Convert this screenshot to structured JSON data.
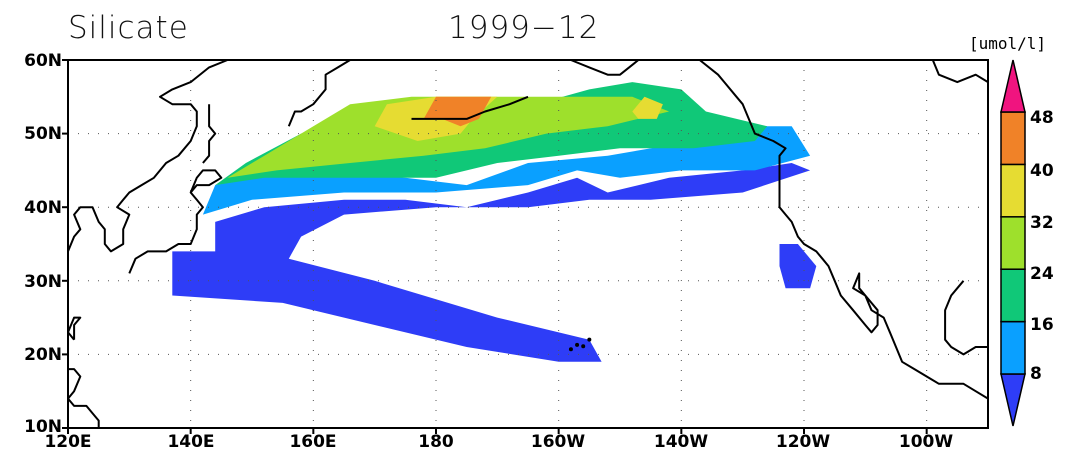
{
  "title": {
    "variable": "Silicate",
    "date": "1999−12"
  },
  "colorbar": {
    "unit": "[umol/l]",
    "levels": [
      "8",
      "16",
      "24",
      "32",
      "40",
      "48"
    ],
    "colors": [
      "#2e3df7",
      "#0aa0ff",
      "#10c878",
      "#9ee02c",
      "#e6dc32",
      "#f08228",
      "#f0147f"
    ]
  },
  "axes": {
    "y_ticks": [
      "60N",
      "50N",
      "40N",
      "30N",
      "20N",
      "10N"
    ],
    "x_ticks": [
      "120E",
      "140E",
      "160E",
      "180",
      "160W",
      "140W",
      "120W",
      "100W"
    ],
    "lon_range": [
      120,
      270
    ],
    "lat_range": [
      10,
      60
    ]
  },
  "chart_data": {
    "type": "heatmap",
    "variable": "Silicate",
    "unit": "umol/l",
    "time": "1999-12",
    "lon_range": [
      120,
      270
    ],
    "lat_range": [
      10,
      60
    ],
    "contour_levels": [
      8,
      16,
      24,
      32,
      40,
      48
    ],
    "regions": [
      {
        "name": "below-8",
        "value_range": [
          0,
          8
        ],
        "color": "#2e3df7",
        "polygon": [
          [
            137,
            34
          ],
          [
            144,
            34
          ],
          [
            144,
            38
          ],
          [
            152,
            40
          ],
          [
            165,
            41
          ],
          [
            175,
            41
          ],
          [
            185,
            40
          ],
          [
            195,
            42
          ],
          [
            203,
            44
          ],
          [
            208,
            42
          ],
          [
            218,
            44
          ],
          [
            230,
            45
          ],
          [
            238,
            46
          ],
          [
            241,
            45
          ],
          [
            230,
            42
          ],
          [
            215,
            41
          ],
          [
            205,
            41
          ],
          [
            195,
            40
          ],
          [
            180,
            40
          ],
          [
            165,
            39
          ],
          [
            158,
            36
          ],
          [
            156,
            33
          ],
          [
            170,
            30
          ],
          [
            190,
            25
          ],
          [
            205,
            22
          ],
          [
            207,
            19
          ],
          [
            200,
            19
          ],
          [
            185,
            21
          ],
          [
            170,
            24
          ],
          [
            155,
            27
          ],
          [
            137,
            28
          ]
        ]
      },
      {
        "name": "below-8-east",
        "value_range": [
          0,
          8
        ],
        "color": "#2e3df7",
        "polygon": [
          [
            236,
            35
          ],
          [
            239,
            35
          ],
          [
            242,
            32
          ],
          [
            241,
            29
          ],
          [
            237,
            29
          ],
          [
            236,
            32
          ]
        ]
      },
      {
        "name": "8-16",
        "value_range": [
          8,
          16
        ],
        "color": "#0aa0ff",
        "polygon": [
          [
            142,
            39
          ],
          [
            144,
            43
          ],
          [
            150,
            44
          ],
          [
            160,
            45
          ],
          [
            175,
            44
          ],
          [
            185,
            43
          ],
          [
            195,
            46
          ],
          [
            208,
            47
          ],
          [
            222,
            49
          ],
          [
            232,
            51
          ],
          [
            238,
            51
          ],
          [
            241,
            47
          ],
          [
            232,
            45
          ],
          [
            220,
            45
          ],
          [
            210,
            44
          ],
          [
            203,
            45
          ],
          [
            195,
            43
          ],
          [
            180,
            42
          ],
          [
            165,
            42
          ],
          [
            150,
            41
          ]
        ]
      },
      {
        "name": "16-24",
        "value_range": [
          16,
          24
        ],
        "color": "#10c878",
        "polygon": [
          [
            144,
            43
          ],
          [
            149,
            46
          ],
          [
            158,
            50
          ],
          [
            168,
            53
          ],
          [
            180,
            52
          ],
          [
            192,
            53
          ],
          [
            205,
            56
          ],
          [
            212,
            57
          ],
          [
            220,
            56
          ],
          [
            224,
            53
          ],
          [
            234,
            51
          ],
          [
            232,
            49
          ],
          [
            222,
            48
          ],
          [
            210,
            48
          ],
          [
            200,
            47
          ],
          [
            190,
            46
          ],
          [
            180,
            44
          ],
          [
            165,
            44
          ],
          [
            152,
            44
          ]
        ]
      },
      {
        "name": "24-32",
        "value_range": [
          24,
          32
        ],
        "color": "#9ee02c",
        "polygon": [
          [
            146,
            44
          ],
          [
            152,
            47
          ],
          [
            158,
            50
          ],
          [
            166,
            54
          ],
          [
            176,
            55
          ],
          [
            188,
            55
          ],
          [
            198,
            55
          ],
          [
            212,
            55
          ],
          [
            218,
            53
          ],
          [
            208,
            51
          ],
          [
            198,
            50
          ],
          [
            188,
            48
          ],
          [
            178,
            47
          ],
          [
            166,
            46
          ],
          [
            154,
            45
          ]
        ]
      },
      {
        "name": "32-40",
        "value_range": [
          32,
          40
        ],
        "color": "#e6dc32",
        "polygon": [
          [
            170,
            51
          ],
          [
            172,
            54
          ],
          [
            180,
            55
          ],
          [
            190,
            55
          ],
          [
            186,
            52
          ],
          [
            184,
            50
          ],
          [
            177,
            49
          ]
        ]
      },
      {
        "name": "32-40-b",
        "value_range": [
          32,
          40
        ],
        "color": "#e6dc32",
        "polygon": [
          [
            212,
            53
          ],
          [
            214,
            55
          ],
          [
            217,
            54
          ],
          [
            216,
            52
          ],
          [
            213,
            52
          ]
        ]
      },
      {
        "name": "40-48",
        "value_range": [
          40,
          48
        ],
        "color": "#f08228",
        "polygon": [
          [
            178,
            52
          ],
          [
            180,
            55
          ],
          [
            189,
            55
          ],
          [
            187,
            52
          ],
          [
            184,
            51
          ],
          [
            181,
            52
          ]
        ]
      }
    ]
  }
}
